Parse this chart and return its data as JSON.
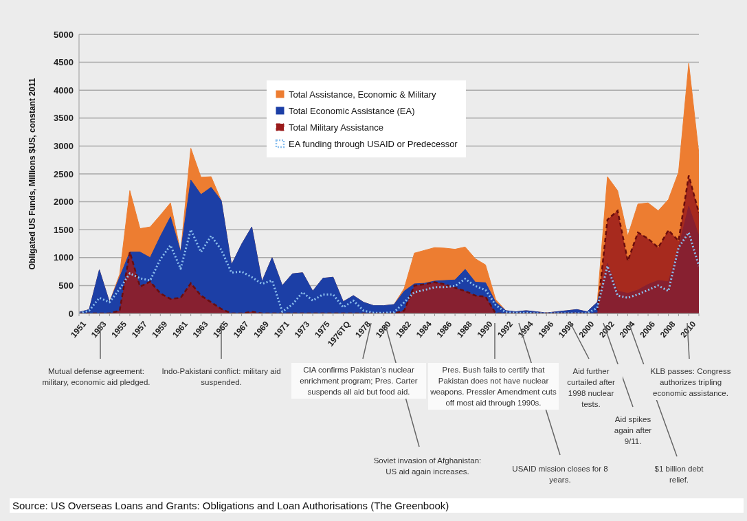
{
  "chart_data": {
    "type": "area",
    "ylabel": "Obligated US Funds, Millions $US, constant 2011",
    "categories": [
      "1951",
      null,
      "1953",
      null,
      "1955",
      null,
      "1957",
      null,
      "1959",
      null,
      "1961",
      null,
      "1963",
      null,
      "1965",
      null,
      "1967",
      null,
      "1969",
      null,
      "1971",
      null,
      "1973",
      null,
      "1975",
      null,
      "1976TQ",
      null,
      "1978",
      null,
      "1980",
      null,
      "1982",
      null,
      "1984",
      null,
      "1986",
      null,
      "1988",
      null,
      "1990",
      null,
      "1992",
      null,
      "1994",
      null,
      "1996",
      null,
      "1998",
      null,
      "2000",
      null,
      "2002",
      null,
      "2004",
      null,
      "2006",
      null,
      "2008",
      null,
      "2010",
      null
    ],
    "series": [
      {
        "name": "Total Assistance, Economic & Military",
        "color": "#ed7d31",
        "values": [
          20,
          70,
          780,
          200,
          700,
          2200,
          1520,
          1550,
          1760,
          1980,
          1100,
          2960,
          2440,
          2450,
          2020,
          870,
          1240,
          1550,
          570,
          1000,
          500,
          710,
          730,
          400,
          630,
          650,
          210,
          320,
          200,
          140,
          140,
          160,
          450,
          1080,
          1130,
          1180,
          1170,
          1150,
          1190,
          980,
          870,
          250,
          50,
          30,
          50,
          30,
          10,
          30,
          50,
          70,
          30,
          200,
          2450,
          2200,
          1390,
          1960,
          1980,
          1840,
          2040,
          2530,
          4480,
          2860
        ]
      },
      {
        "name": "Total Economic Assistance (EA)",
        "color": "#1c3fa6",
        "values": [
          20,
          70,
          780,
          200,
          650,
          1100,
          1100,
          1000,
          1380,
          1730,
          1100,
          2390,
          2130,
          2260,
          2020,
          870,
          1240,
          1550,
          570,
          1000,
          500,
          710,
          730,
          400,
          630,
          650,
          210,
          320,
          200,
          140,
          140,
          160,
          400,
          530,
          540,
          580,
          590,
          600,
          790,
          560,
          550,
          200,
          50,
          30,
          50,
          30,
          10,
          30,
          50,
          70,
          30,
          200,
          900,
          400,
          360,
          420,
          520,
          590,
          570,
          1180,
          1920,
          1390
        ]
      },
      {
        "name": "Total Military Assistance",
        "line_style": "dashed",
        "color": "#9a1b1b",
        "values": [
          0,
          0,
          0,
          0,
          50,
          1100,
          480,
          570,
          360,
          260,
          280,
          540,
          320,
          200,
          80,
          0,
          0,
          30,
          0,
          0,
          0,
          0,
          0,
          0,
          0,
          0,
          0,
          0,
          0,
          0,
          0,
          0,
          50,
          500,
          520,
          560,
          520,
          460,
          400,
          320,
          300,
          0,
          0,
          0,
          0,
          0,
          0,
          0,
          0,
          0,
          0,
          0,
          1680,
          1840,
          940,
          1450,
          1340,
          1180,
          1490,
          1300,
          2470,
          1800
        ]
      },
      {
        "name": "EA funding through USAID or Predecessor",
        "type": "line",
        "line_style": "dotted",
        "color": "#8cc0ee",
        "values": [
          0,
          50,
          280,
          200,
          440,
          720,
          630,
          590,
          970,
          1220,
          800,
          1500,
          1100,
          1390,
          1140,
          730,
          750,
          650,
          530,
          590,
          30,
          160,
          380,
          230,
          340,
          340,
          110,
          230,
          50,
          10,
          10,
          20,
          200,
          380,
          420,
          470,
          470,
          490,
          620,
          490,
          420,
          150,
          20,
          10,
          10,
          0,
          0,
          0,
          0,
          0,
          0,
          100,
          850,
          320,
          280,
          340,
          420,
          500,
          400,
          1180,
          1450,
          850
        ]
      }
    ],
    "ylim": [
      0,
      5000
    ],
    "yticks": [
      0,
      500,
      1000,
      1500,
      2000,
      2500,
      3000,
      3500,
      4000,
      4500,
      5000
    ],
    "grid": "y",
    "legend": "top",
    "annotations": [
      "Mutual defense agreement: military, economic aid pledged.",
      "Indo-Pakistani conflict: military aid suspended.",
      "CIA confirms Pakistan’s nuclear enrichment program; Pres. Carter suspends all aid but food aid.",
      "Soviet invasion of Afghanistan: US aid again increases.",
      "Pres. Bush fails to certify that Pakistan does not have nuclear weapons. Pressler Amendment cuts off most aid through 1990s.",
      "USAID mission closes for 8 years.",
      "Aid further curtailed after 1998 nuclear tests.",
      "Aid spikes again after 9/11.",
      "$1 billion debt relief.",
      "KLB passes: Congress authorizes tripling economic assistance.",
      "Source: US Overseas Loans and Grants: Obligations and Loan Authorisations (The Greenbook)"
    ]
  }
}
